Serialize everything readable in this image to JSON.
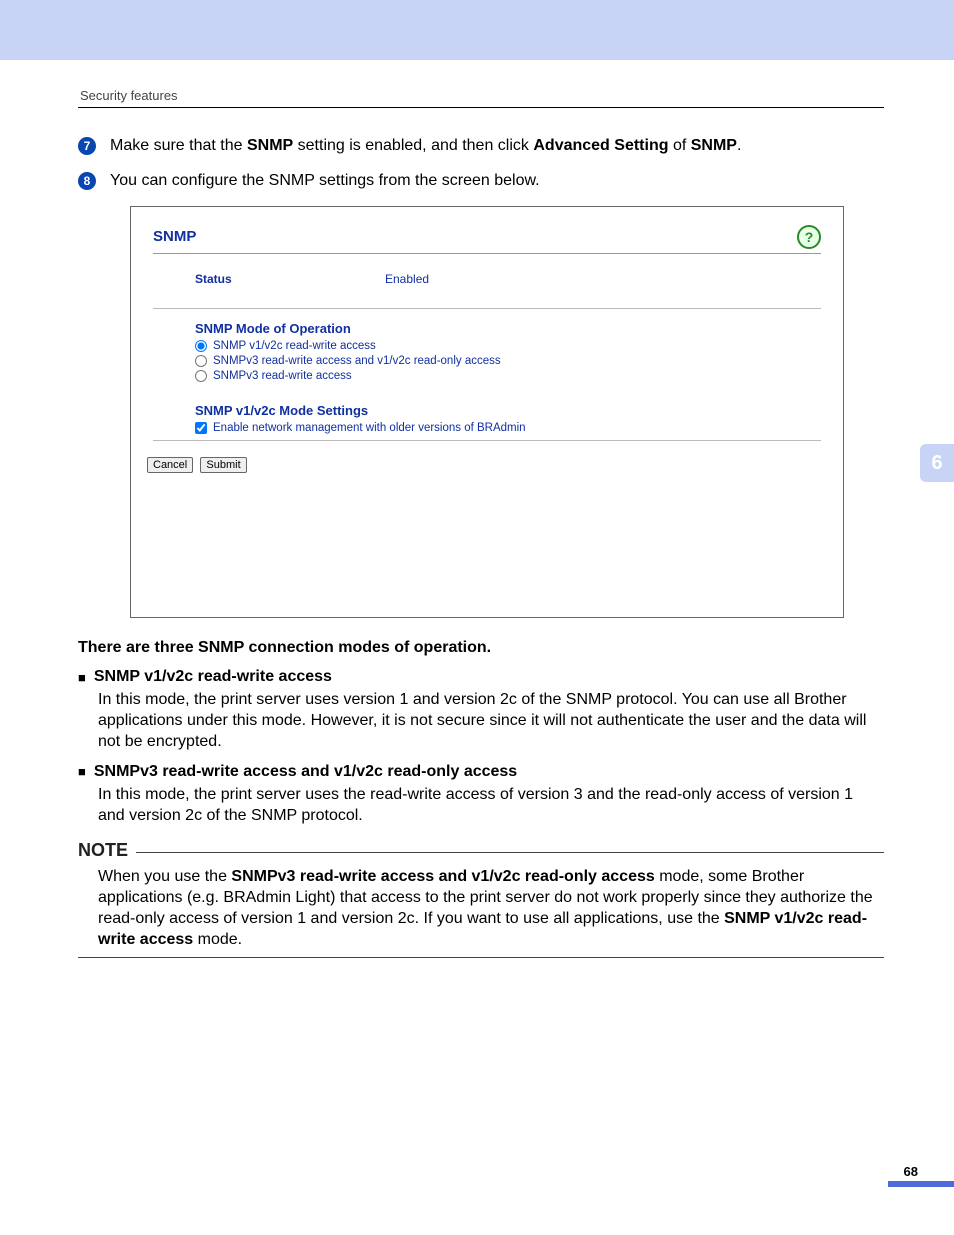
{
  "header": {
    "section_title": "Security features"
  },
  "steps": [
    {
      "num": "7",
      "color": "#0a46b0",
      "text": "Make sure that the <b>SNMP</b> setting is enabled, and then click <b>Advanced Setting</b> of <b>SNMP</b>."
    },
    {
      "num": "8",
      "color": "#0a46b0",
      "text": "You can configure the SNMP settings from the screen below."
    }
  ],
  "panel": {
    "title": "SNMP",
    "status_label": "Status",
    "status_value": "Enabled",
    "mode_title": "SNMP Mode of Operation",
    "radios": [
      {
        "label": "SNMP v1/v2c read-write access",
        "checked": true
      },
      {
        "label": "SNMPv3 read-write access and v1/v2c read-only access",
        "checked": false
      },
      {
        "label": "SNMPv3 read-write access",
        "checked": false
      }
    ],
    "settings_title": "SNMP v1/v2c Mode Settings",
    "checkbox": {
      "label": "Enable network management with older versions of BRAdmin",
      "checked": true
    },
    "btn_cancel": "Cancel",
    "btn_submit": "Submit"
  },
  "intro_bold": "There are three SNMP connection modes of operation.",
  "modes": [
    {
      "title": "SNMP v1/v2c read-write access",
      "desc": "In this mode, the print server uses version 1 and version 2c of the SNMP protocol. You can use all Brother applications under this mode. However, it is not secure since it will not authenticate the user and the data will not be encrypted."
    },
    {
      "title": "SNMPv3 read-write access and v1/v2c read-only access",
      "desc": "In this mode, the print server uses the read-write access of version 3 and the read-only access of version 1 and version 2c of the SNMP protocol."
    }
  ],
  "note": {
    "label": "NOTE",
    "text": "When you use the <b>SNMPv3 read-write access and v1/v2c read-only access</b> mode, some Brother applications (e.g. BRAdmin Light) that access to the print server do not work properly since they authorize the read-only access of version 1 and version 2c. If you want to use all applications, use the <b>SNMP v1/v2c read-write access</b> mode."
  },
  "side_tab": "6",
  "page_number": "68"
}
